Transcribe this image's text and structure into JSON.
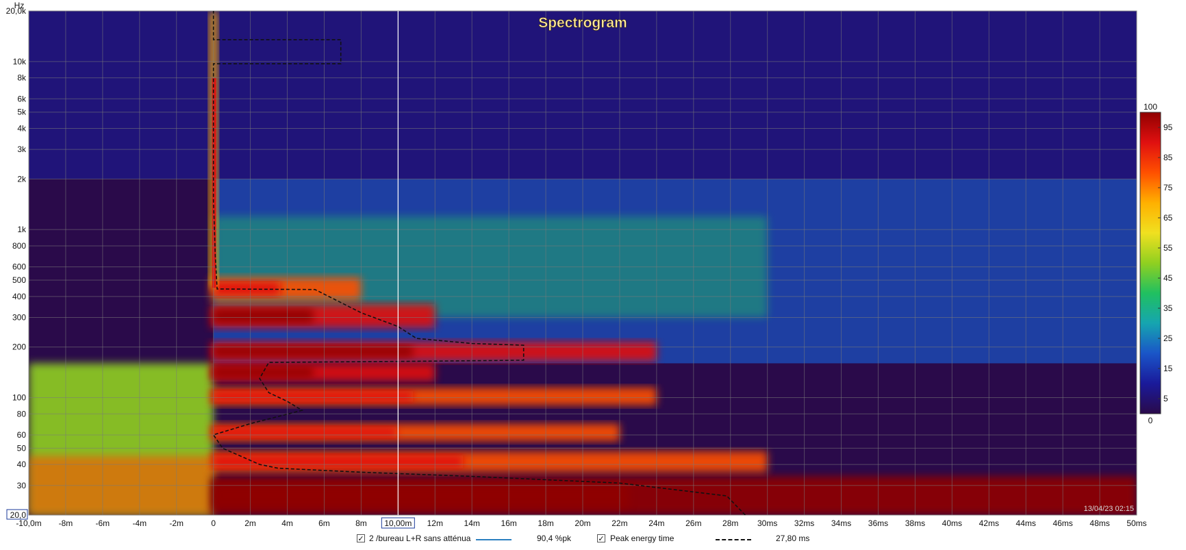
{
  "chart_data": {
    "type": "heatmap",
    "title": "Spectrogram",
    "ylabel": "Hz",
    "xlim": [
      -10,
      50
    ],
    "ylim": [
      20,
      20000
    ],
    "y_scale": "log",
    "x_unit": "ms",
    "x_ticks": [
      {
        "v": -10,
        "label": "-10,0m"
      },
      {
        "v": -8,
        "label": "-8m"
      },
      {
        "v": -6,
        "label": "-6m"
      },
      {
        "v": -4,
        "label": "-4m"
      },
      {
        "v": -2,
        "label": "-2m"
      },
      {
        "v": 0,
        "label": "0"
      },
      {
        "v": 2,
        "label": "2m"
      },
      {
        "v": 4,
        "label": "4m"
      },
      {
        "v": 6,
        "label": "6m"
      },
      {
        "v": 8,
        "label": "8m"
      },
      {
        "v": 10,
        "label": "10,00m"
      },
      {
        "v": 12,
        "label": "12m"
      },
      {
        "v": 14,
        "label": "14m"
      },
      {
        "v": 16,
        "label": "16m"
      },
      {
        "v": 18,
        "label": "18m"
      },
      {
        "v": 20,
        "label": "20m"
      },
      {
        "v": 22,
        "label": "22m"
      },
      {
        "v": 24,
        "label": "24m"
      },
      {
        "v": 26,
        "label": "26m"
      },
      {
        "v": 28,
        "label": "28m"
      },
      {
        "v": 30,
        "label": "30ms"
      },
      {
        "v": 32,
        "label": "32ms"
      },
      {
        "v": 34,
        "label": "34ms"
      },
      {
        "v": 36,
        "label": "36ms"
      },
      {
        "v": 38,
        "label": "38ms"
      },
      {
        "v": 40,
        "label": "40ms"
      },
      {
        "v": 42,
        "label": "42ms"
      },
      {
        "v": 44,
        "label": "44ms"
      },
      {
        "v": 46,
        "label": "46ms"
      },
      {
        "v": 48,
        "label": "48ms"
      },
      {
        "v": 50,
        "label": "50ms"
      }
    ],
    "y_ticks": [
      {
        "v": 20000,
        "label": "20,0k"
      },
      {
        "v": 10000,
        "label": "10k"
      },
      {
        "v": 8000,
        "label": "8k"
      },
      {
        "v": 6000,
        "label": "6k"
      },
      {
        "v": 5000,
        "label": "5k"
      },
      {
        "v": 4000,
        "label": "4k"
      },
      {
        "v": 3000,
        "label": "3k"
      },
      {
        "v": 2000,
        "label": "2k"
      },
      {
        "v": 1000,
        "label": "1k"
      },
      {
        "v": 800,
        "label": "800"
      },
      {
        "v": 600,
        "label": "600"
      },
      {
        "v": 500,
        "label": "500"
      },
      {
        "v": 400,
        "label": "400"
      },
      {
        "v": 300,
        "label": "300"
      },
      {
        "v": 200,
        "label": "200"
      },
      {
        "v": 100,
        "label": "100"
      },
      {
        "v": 80,
        "label": "80"
      },
      {
        "v": 60,
        "label": "60"
      },
      {
        "v": 50,
        "label": "50"
      },
      {
        "v": 40,
        "label": "40"
      },
      {
        "v": 30,
        "label": "30"
      },
      {
        "v": 20,
        "label": "20,0"
      }
    ],
    "cursor_x": 10,
    "colorbar": {
      "min": 0,
      "max": 100,
      "ticks": [
        100,
        95,
        85,
        75,
        65,
        55,
        45,
        35,
        25,
        15,
        5,
        0
      ],
      "colors": [
        "#2a0a4a",
        "#1a1a9a",
        "#1a55c8",
        "#16a5b0",
        "#20c060",
        "#90d020",
        "#f0e020",
        "#ffb000",
        "#ff5000",
        "#e01010",
        "#900000"
      ]
    },
    "energy_bands": [
      {
        "f_lo": 20,
        "f_hi": 34,
        "t_end": 50,
        "level": 95
      },
      {
        "f_lo": 36,
        "f_hi": 48,
        "t_end": 30,
        "level": 75
      },
      {
        "f_lo": 55,
        "f_hi": 70,
        "t_end": 22,
        "level": 80
      },
      {
        "f_lo": 90,
        "f_hi": 115,
        "t_end": 24,
        "level": 80
      },
      {
        "f_lo": 125,
        "f_hi": 160,
        "t_end": 12,
        "level": 85
      },
      {
        "f_lo": 165,
        "f_hi": 215,
        "t_end": 24,
        "level": 88
      },
      {
        "f_lo": 260,
        "f_hi": 360,
        "t_end": 12,
        "level": 85
      },
      {
        "f_lo": 380,
        "f_hi": 520,
        "t_end": 8,
        "level": 80
      }
    ],
    "peak_energy_time_ms": [
      [
        28.8,
        20
      ],
      [
        27.8,
        26
      ],
      [
        22,
        31
      ],
      [
        14,
        34
      ],
      [
        8,
        36
      ],
      [
        3.5,
        38
      ],
      [
        2.5,
        40
      ],
      [
        0.5,
        50
      ],
      [
        0,
        60
      ],
      [
        2,
        70
      ],
      [
        4.8,
        84
      ],
      [
        4,
        95
      ],
      [
        3,
        107
      ],
      [
        2.5,
        130
      ],
      [
        3,
        162
      ],
      [
        12,
        165
      ],
      [
        16.8,
        167
      ],
      [
        16.8,
        205
      ],
      [
        14,
        210
      ],
      [
        11,
        225
      ],
      [
        10,
        265
      ],
      [
        8,
        320
      ],
      [
        5.5,
        440
      ],
      [
        0.2,
        443
      ],
      [
        0.1,
        700
      ],
      [
        0,
        1500
      ],
      [
        0,
        9700
      ],
      [
        6.9,
        9700
      ],
      [
        6.9,
        13500
      ],
      [
        0,
        13500
      ],
      [
        0,
        20000
      ]
    ]
  },
  "legend": {
    "series_checked": "✓",
    "series_name": "2 /bureau L+R sans atténua",
    "series_color": "#2a7fc0",
    "series_value": "90,4 %pk",
    "peak_checked": "✓",
    "peak_name": "Peak energy time",
    "peak_value": "27,80 ms"
  },
  "timestamp": "13/04/23 02:15"
}
